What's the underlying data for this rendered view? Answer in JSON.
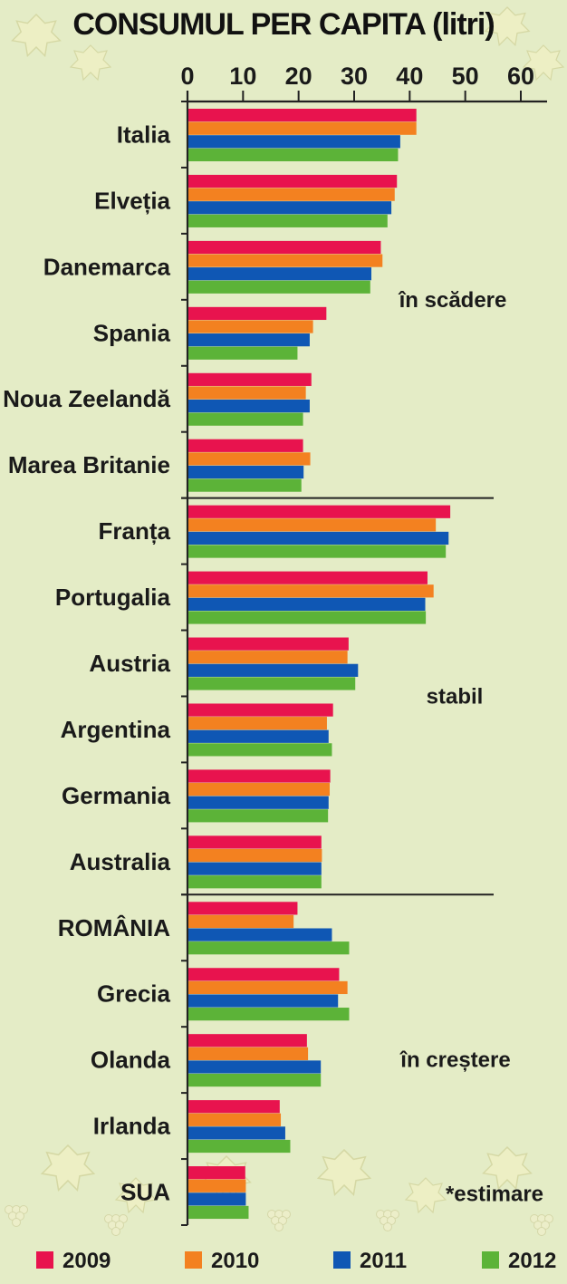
{
  "chart_data": {
    "type": "bar",
    "orientation": "horizontal",
    "title": "CONSUMUL PER CAPITA (litri)",
    "xlim": [
      0,
      60
    ],
    "x_ticks": [
      0,
      10,
      20,
      30,
      40,
      50,
      60
    ],
    "x_axis_position": "top",
    "categories": [
      "Italia",
      "Elveția",
      "Danemarca",
      "Spania",
      "Noua Zeelandă",
      "Marea Britanie",
      "Franța",
      "Portugalia",
      "Austria",
      "Argentina",
      "Germania",
      "Australia",
      "ROMÂNIA",
      "Grecia",
      "Olanda",
      "Irlanda",
      "SUA"
    ],
    "series": [
      {
        "name": "2009",
        "color": "#e8134e",
        "values": [
          41.2,
          37.7,
          34.8,
          25.0,
          22.3,
          20.8,
          47.3,
          43.2,
          29.0,
          26.2,
          25.7,
          24.1,
          19.8,
          27.3,
          21.5,
          16.6,
          10.4
        ]
      },
      {
        "name": "2010",
        "color": "#f38120",
        "values": [
          41.2,
          37.3,
          35.1,
          22.6,
          21.3,
          22.1,
          44.7,
          44.3,
          28.8,
          25.1,
          25.6,
          24.2,
          19.1,
          28.8,
          21.7,
          16.8,
          10.5
        ]
      },
      {
        "name": "2011",
        "color": "#0f57b4",
        "values": [
          38.3,
          36.7,
          33.1,
          22.0,
          22.0,
          20.9,
          47.0,
          42.8,
          30.7,
          25.4,
          25.4,
          24.1,
          26.0,
          27.1,
          24.0,
          17.6,
          10.5
        ]
      },
      {
        "name": "2012",
        "color": "#5cb338",
        "values": [
          37.9,
          36.0,
          32.9,
          19.8,
          20.8,
          20.5,
          46.5,
          42.9,
          30.2,
          26.0,
          25.3,
          24.1,
          29.1,
          29.1,
          24.0,
          18.5,
          11.0
        ]
      }
    ],
    "groups": [
      {
        "label": "în scădere",
        "categories": [
          "Italia",
          "Elveția",
          "Danemarca",
          "Spania",
          "Noua Zeelandă",
          "Marea Britanie"
        ]
      },
      {
        "label": "stabil",
        "categories": [
          "Franța",
          "Portugalia",
          "Austria",
          "Argentina",
          "Germania",
          "Australia"
        ]
      },
      {
        "label": "în creștere",
        "categories": [
          "ROMÂNIA",
          "Grecia",
          "Olanda",
          "Irlanda",
          "SUA"
        ]
      }
    ],
    "note": "*estimare",
    "legend_position": "bottom"
  }
}
